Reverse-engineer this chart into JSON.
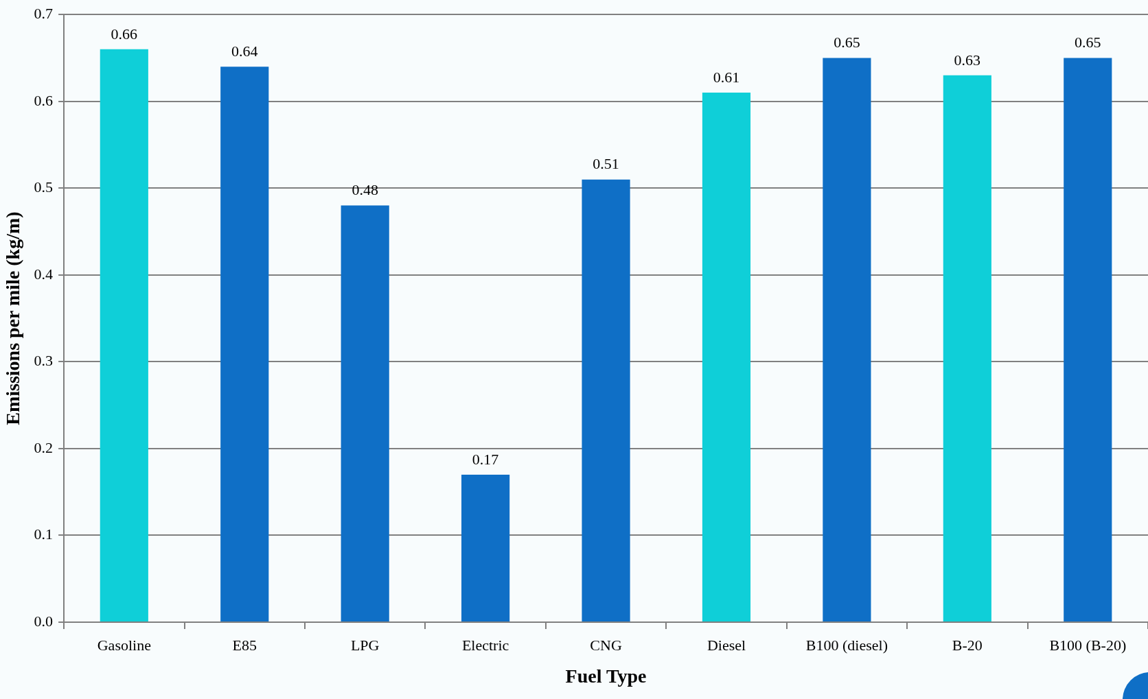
{
  "chart_data": {
    "type": "bar",
    "xlabel": "Fuel Type",
    "ylabel": "Emissions per mile (kg/m)",
    "categories": [
      "Gasoline",
      "E85",
      "LPG",
      "Electric",
      "CNG",
      "Diesel",
      "B100 (diesel)",
      "B-20",
      "B100 (B-20)"
    ],
    "values": [
      0.66,
      0.64,
      0.48,
      0.17,
      0.51,
      0.61,
      0.65,
      0.63,
      0.65
    ],
    "colors": [
      "#0fcfd8",
      "#0f6fc6",
      "#0f6fc6",
      "#0f6fc6",
      "#0f6fc6",
      "#0fcfd8",
      "#0f6fc6",
      "#0fcfd8",
      "#0f6fc6"
    ],
    "ylim": [
      0,
      0.7
    ],
    "yticks": [
      {
        "value": 0,
        "label": "0.0"
      },
      0.1,
      0.2,
      0.3,
      0.4,
      0.5,
      0.6,
      0.7
    ],
    "grid": "y",
    "legend": false,
    "data_labels": true
  }
}
